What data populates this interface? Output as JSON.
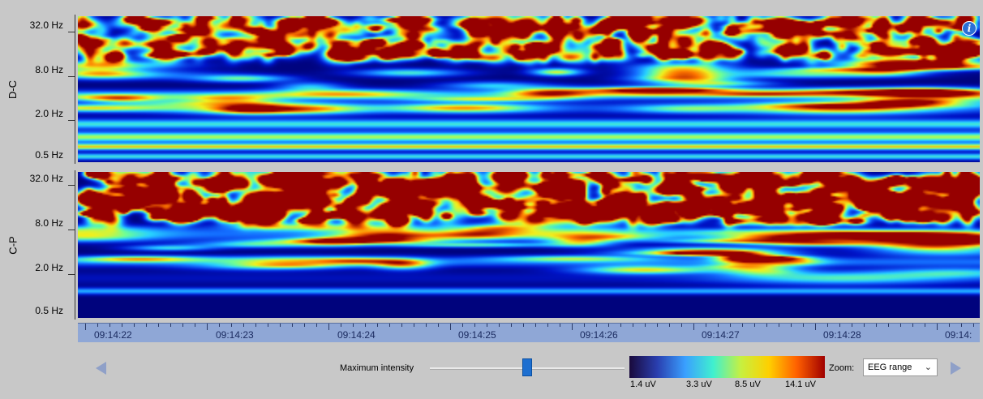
{
  "panels": [
    {
      "channel": "D-C",
      "freq_ticks": [
        "32.0 Hz",
        "8.0 Hz",
        "2.0 Hz",
        "0.5 Hz"
      ]
    },
    {
      "channel": "C-P",
      "freq_ticks": [
        "32.0 Hz",
        "8.0 Hz",
        "2.0 Hz",
        "0.5 Hz"
      ]
    }
  ],
  "info_icon": "i",
  "time_axis": {
    "labels": [
      "09:14:22",
      "09:14:23",
      "09:14:24",
      "09:14:25",
      "09:14:26",
      "09:14:27",
      "09:14:28",
      "09:14:"
    ]
  },
  "controls": {
    "slider_label": "Maximum intensity",
    "slider_value": 0.5,
    "zoom_label": "Zoom:",
    "zoom_value": "EEG range"
  },
  "colorbar": {
    "labels": [
      "1.4 uV",
      "3.3 uV",
      "8.5 uV",
      "14.1 uV"
    ],
    "colors": [
      "#1a0a3c",
      "#2a3fb0",
      "#3aa0ff",
      "#40f0d0",
      "#c8f040",
      "#ffd000",
      "#ff6000",
      "#a00000"
    ]
  },
  "chart_data": {
    "type": "heatmap",
    "title": "",
    "y_ticks": [
      "32.0 Hz",
      "8.0 Hz",
      "2.0 Hz",
      "0.5 Hz"
    ],
    "y_scale": "log2",
    "x_ticks": [
      "09:14:22",
      "09:14:23",
      "09:14:24",
      "09:14:25",
      "09:14:26",
      "09:14:27",
      "09:14:28"
    ],
    "color_scale_labels": [
      "1.4 uV",
      "3.3 uV",
      "8.5 uV",
      "14.1 uV"
    ],
    "series": [
      {
        "name": "D-C",
        "description_bands": [
          {
            "freq_hz": 32,
            "level": "high, patchy"
          },
          {
            "freq_hz": 2,
            "level": "high around 09:14:27"
          },
          {
            "freq_hz": 0.8,
            "level": "high, continuous"
          }
        ]
      },
      {
        "name": "C-P",
        "description_bands": [
          {
            "freq_hz": 32,
            "level": "very high, patchy"
          },
          {
            "freq_hz": 8,
            "level": "medium"
          },
          {
            "freq_hz": 1,
            "level": "low-medium"
          }
        ]
      }
    ]
  }
}
